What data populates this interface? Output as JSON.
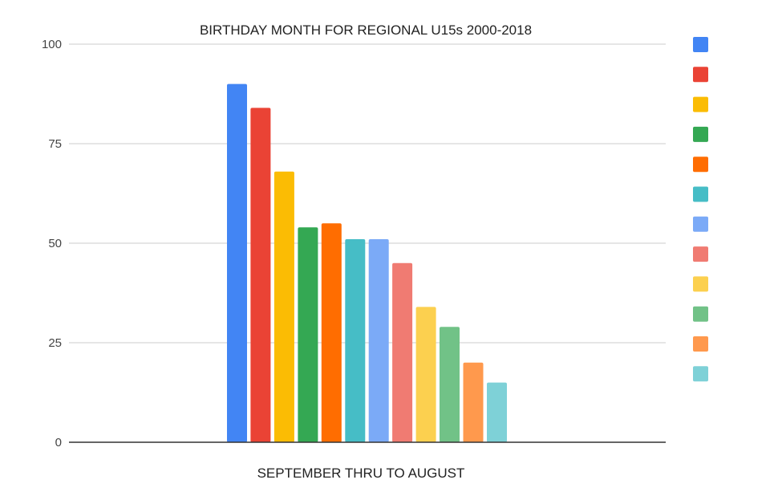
{
  "chart_data": {
    "type": "bar",
    "title": "BIRTHDAY MONTH FOR REGIONAL U15s 2000-2018",
    "xlabel": "SEPTEMBER THRU TO AUGUST",
    "ylabel": "",
    "ylim": [
      0,
      100
    ],
    "yticks": [
      {
        "value": 0,
        "label": "0"
      },
      {
        "value": 25,
        "label": "25"
      },
      {
        "value": 50,
        "label": "50"
      },
      {
        "value": 75,
        "label": "75"
      },
      {
        "value": 100,
        "label": "100"
      }
    ],
    "grid": true,
    "legend_position": "right",
    "series": [
      {
        "values": [
          90
        ],
        "color": "#4285f4"
      },
      {
        "values": [
          84
        ],
        "color": "#ea4335"
      },
      {
        "values": [
          68
        ],
        "color": "#fbbc04"
      },
      {
        "values": [
          54
        ],
        "color": "#34a853"
      },
      {
        "values": [
          55
        ],
        "color": "#ff6d01"
      },
      {
        "values": [
          51
        ],
        "color": "#46bdc6"
      },
      {
        "values": [
          51
        ],
        "color": "#7baaf7"
      },
      {
        "values": [
          45
        ],
        "color": "#f07b72"
      },
      {
        "values": [
          34
        ],
        "color": "#fcd04f"
      },
      {
        "values": [
          29
        ],
        "color": "#71c287"
      },
      {
        "values": [
          20
        ],
        "color": "#ff994d"
      },
      {
        "values": [
          15
        ],
        "color": "#7ed1d7"
      }
    ]
  }
}
